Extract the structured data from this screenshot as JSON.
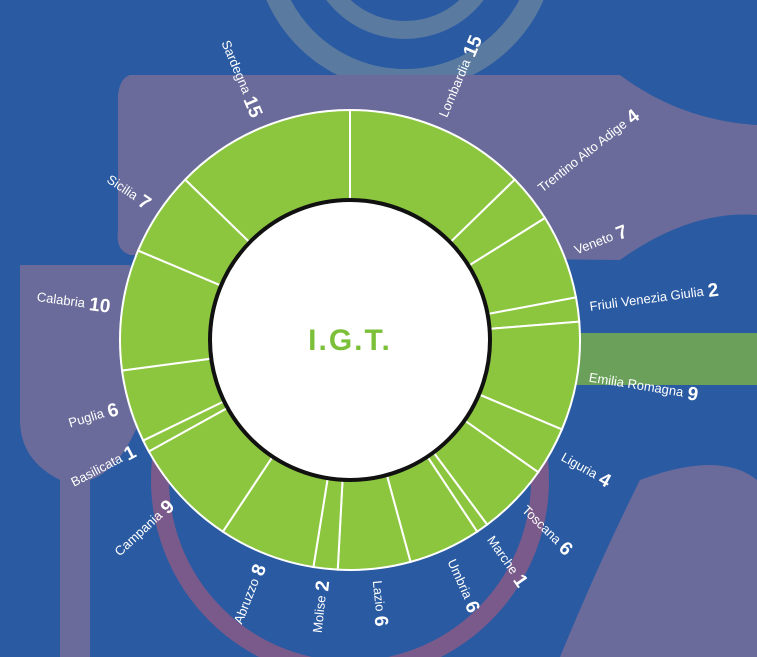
{
  "chart_data": {
    "type": "donut",
    "title": "I.G.T.",
    "categories": [
      "Lombardia",
      "Trentino Alto Adige",
      "Veneto",
      "Friuli Venezia Giulia",
      "Emilia Romagna",
      "Liguria",
      "Toscana",
      "Marche",
      "Umbria",
      "Lazio",
      "Molise",
      "Abruzzo",
      "Campania",
      "Basilicata",
      "Puglia",
      "Calabria",
      "Sicilia",
      "Sardegna"
    ],
    "values": [
      15,
      4,
      7,
      2,
      9,
      4,
      6,
      1,
      6,
      6,
      2,
      8,
      9,
      1,
      6,
      10,
      7,
      15
    ],
    "color": "#8cc63f"
  }
}
